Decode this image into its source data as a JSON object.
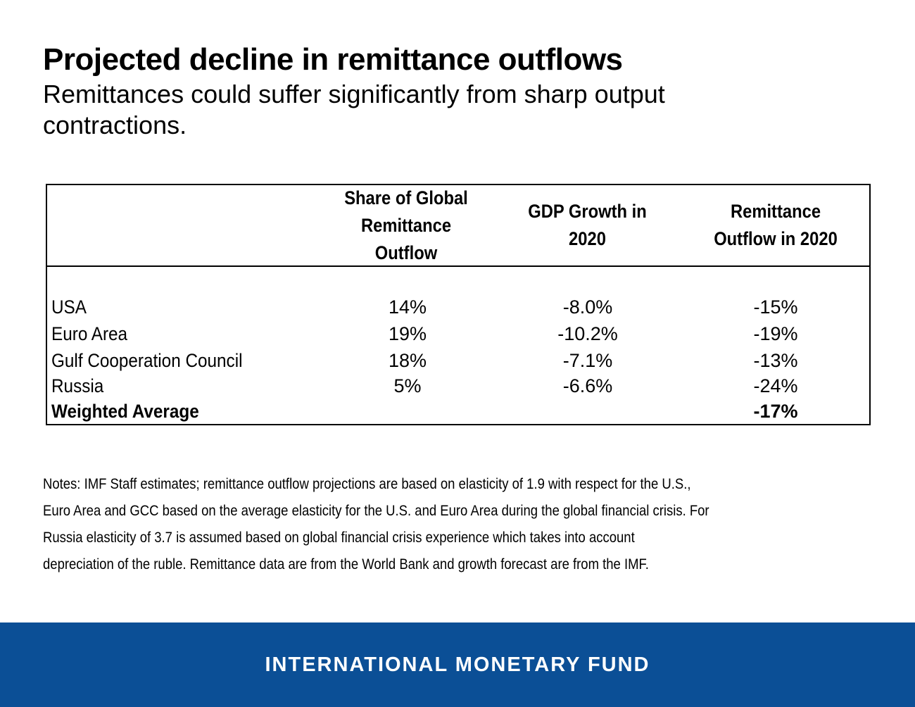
{
  "header": {
    "title": "Projected decline in remittance outflows",
    "subtitle": "Remittances could suffer significantly from sharp output contractions."
  },
  "chart_data": {
    "type": "table",
    "columns": [
      "",
      "Share of Global Remittance Outflow",
      "GDP Growth in 2020",
      "Remittance Outflow in 2020"
    ],
    "rows": [
      {
        "label": "USA",
        "share": "14%",
        "gdp": "-8.0%",
        "outflow": "-15%"
      },
      {
        "label": "Euro Area",
        "share": "19%",
        "gdp": "-10.2%",
        "outflow": "-19%"
      },
      {
        "label": "Gulf Cooperation Council",
        "share": "18%",
        "gdp": "-7.1%",
        "outflow": "-13%"
      },
      {
        "label": "Russia",
        "share": "5%",
        "gdp": "-6.6%",
        "outflow": "-24%"
      },
      {
        "label": "Weighted Average",
        "share": "",
        "gdp": "",
        "outflow": "-17%"
      }
    ]
  },
  "notes": {
    "lines": [
      "Notes: IMF Staff estimates; remittance outflow projections are based on elasticity of 1.9 with respect for the U.S.,",
      "Euro Area and GCC based on the average elasticity for the U.S. and Euro Area during the global financial crisis. For",
      "Russia elasticity of 3.7 is assumed based on global financial crisis experience which takes into account",
      "depreciation of the ruble. Remittance data are from the World Bank and growth forecast are from the IMF."
    ]
  },
  "footer": {
    "label": "INTERNATIONAL MONETARY FUND",
    "background": "#0b4f96"
  }
}
